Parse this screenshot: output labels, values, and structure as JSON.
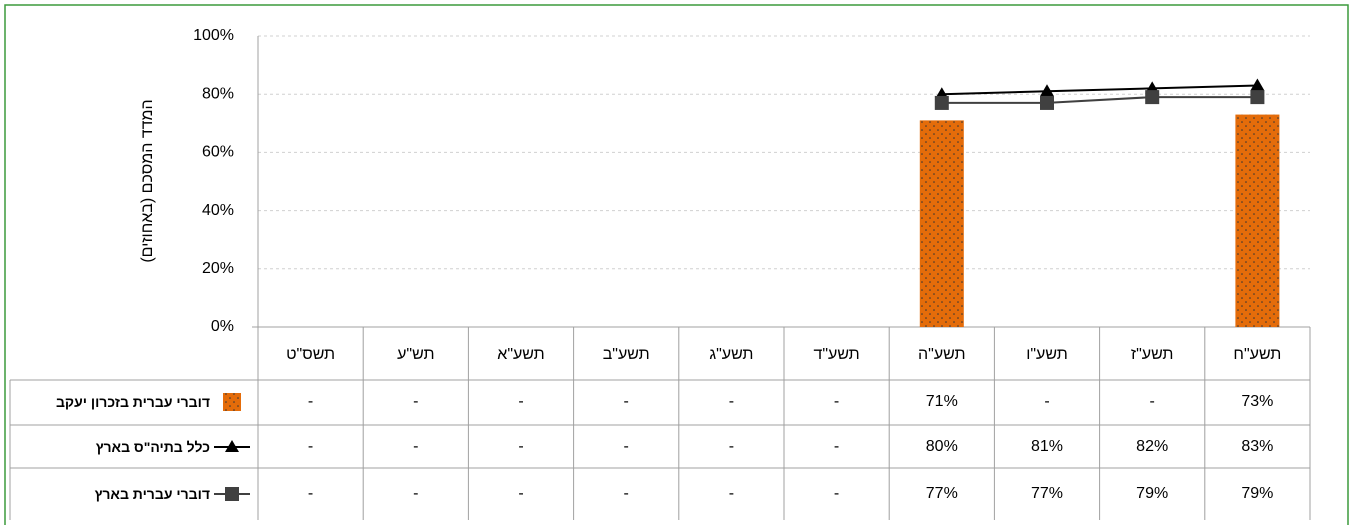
{
  "chart_data": {
    "type": "bar",
    "y_label": "המדד המסכם (באחוזים)",
    "categories": [
      "תשס\"ט",
      "תש\"ע",
      "תשע\"א",
      "תשע\"ב",
      "תשע\"ג",
      "תשע\"ד",
      "תשע\"ה",
      "תשע\"ו",
      "תשע\"ז",
      "תשע\"ח"
    ],
    "series": [
      {
        "name": "דוברי עברית בזכרון יעקב",
        "type": "bar",
        "color": "#e46c0a",
        "values": [
          null,
          null,
          null,
          null,
          null,
          null,
          71,
          null,
          null,
          73
        ],
        "value_labels": [
          "-",
          "-",
          "-",
          "-",
          "-",
          "-",
          "71%",
          "-",
          "-",
          "73%"
        ]
      },
      {
        "name": "כלל בתיה\"ס בארץ",
        "type": "line",
        "marker": "triangle",
        "color": "#000000",
        "values": [
          null,
          null,
          null,
          null,
          null,
          null,
          80,
          81,
          82,
          83
        ],
        "value_labels": [
          "-",
          "-",
          "-",
          "-",
          "-",
          "-",
          "80%",
          "81%",
          "82%",
          "83%"
        ]
      },
      {
        "name": "דוברי עברית בארץ",
        "type": "line",
        "marker": "square",
        "color": "#404040",
        "values": [
          null,
          null,
          null,
          null,
          null,
          null,
          77,
          77,
          79,
          79
        ],
        "value_labels": [
          "-",
          "-",
          "-",
          "-",
          "-",
          "-",
          "77%",
          "77%",
          "79%",
          "79%"
        ]
      }
    ],
    "ylim": [
      0,
      100
    ],
    "yticks": [
      {
        "value": 0,
        "label": "0%"
      },
      {
        "value": 20,
        "label": "20%"
      },
      {
        "value": 40,
        "label": "40%"
      },
      {
        "value": 60,
        "label": "60%"
      },
      {
        "value": 80,
        "label": "80%"
      },
      {
        "value": 100,
        "label": "100%"
      }
    ],
    "grid": true
  }
}
